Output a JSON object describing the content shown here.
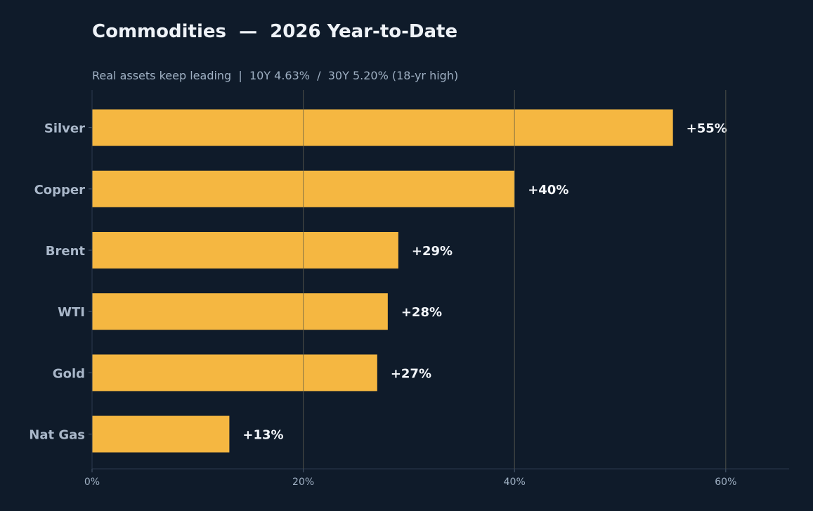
{
  "chart_data": {
    "type": "bar",
    "orientation": "horizontal",
    "title": "Commodities  —  2026 Year-to-Date",
    "subtitle": "Real assets keep leading  |  10Y 4.63%  /  30Y 5.20% (18-yr high)",
    "categories": [
      "Silver",
      "Copper",
      "Brent",
      "WTI",
      "Gold",
      "Nat Gas"
    ],
    "values": [
      55,
      40,
      29,
      28,
      27,
      13
    ],
    "value_labels": [
      "+55%",
      "+40%",
      "+29%",
      "+28%",
      "+27%",
      "+13%"
    ],
    "xlim": [
      0,
      66
    ],
    "xticks": [
      0,
      20,
      40,
      60
    ],
    "xtick_labels": [
      "0%",
      "20%",
      "40%",
      "60%"
    ],
    "grid": "vertical",
    "colors": {
      "background": "#0f1b2a",
      "bar": "#f5b741",
      "grid": "#253447"
    }
  }
}
